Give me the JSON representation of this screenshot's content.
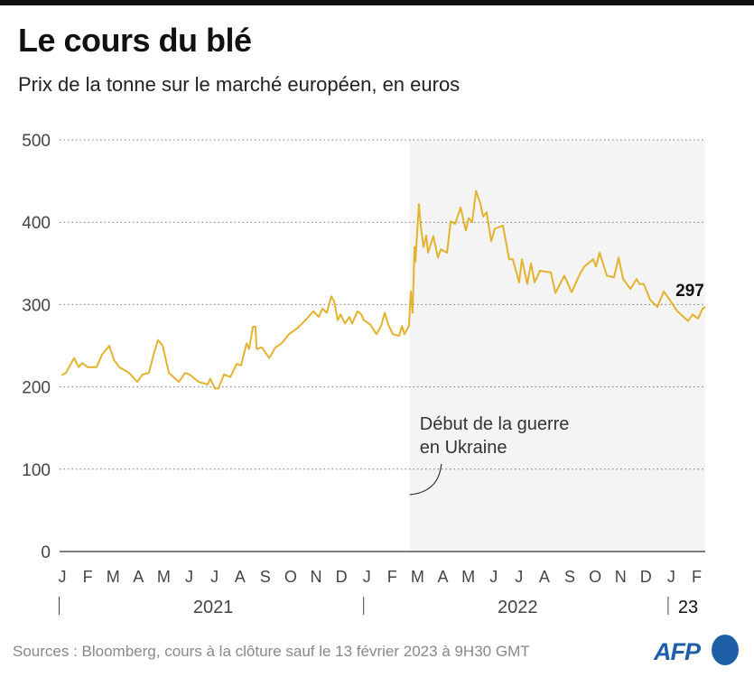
{
  "title": "Le cours du blé",
  "subtitle": "Prix de la tonne sur le marché européen, en euros",
  "source": "Sources : Bloomberg, cours à la clôture sauf le 13 février 2023 à 9H30 GMT",
  "logo": "AFP",
  "colors": {
    "line": "#e3b22e",
    "shade": "#f4f4f4",
    "logo": "#1f5fa8"
  },
  "chart_data": {
    "type": "line",
    "title": "Le cours du blé",
    "ylabel": "Prix de la tonne sur le marché européen, en euros",
    "x_unit": "months since January 2021",
    "xlim": [
      0,
      25.5
    ],
    "ylim": [
      0,
      500
    ],
    "yticks": [
      0,
      100,
      200,
      300,
      400,
      500
    ],
    "grid": "horizontal dotted",
    "month_labels": [
      "J",
      "F",
      "M",
      "A",
      "M",
      "J",
      "J",
      "A",
      "S",
      "O",
      "N",
      "D",
      "J",
      "F",
      "M",
      "A",
      "M",
      "J",
      "J",
      "A",
      "S",
      "O",
      "N",
      "D",
      "J",
      "F"
    ],
    "year_labels": [
      {
        "label": "2021",
        "start": 0
      },
      {
        "label": "2022",
        "start": 12
      },
      {
        "label": "23",
        "start": 24
      }
    ],
    "shaded_from": 13.8,
    "annotation": {
      "line1": "Début de la guerre",
      "line2": "en Ukraine",
      "at": 13.8
    },
    "last_value_label": "297",
    "series": [
      {
        "name": "Blé",
        "points": [
          [
            0.07,
            214
          ],
          [
            0.25,
            217
          ],
          [
            0.57,
            235
          ],
          [
            0.75,
            224
          ],
          [
            0.89,
            229
          ],
          [
            1.1,
            224
          ],
          [
            1.46,
            224
          ],
          [
            1.67,
            239
          ],
          [
            1.96,
            250
          ],
          [
            2.14,
            233
          ],
          [
            2.35,
            224
          ],
          [
            2.74,
            217
          ],
          [
            3.06,
            206
          ],
          [
            3.27,
            215
          ],
          [
            3.52,
            217
          ],
          [
            3.7,
            239
          ],
          [
            3.88,
            257
          ],
          [
            4.06,
            250
          ],
          [
            4.31,
            217
          ],
          [
            4.7,
            206
          ],
          [
            4.95,
            217
          ],
          [
            5.12,
            215
          ],
          [
            5.48,
            206
          ],
          [
            5.84,
            203
          ],
          [
            5.94,
            210
          ],
          [
            6.12,
            198
          ],
          [
            6.26,
            198
          ],
          [
            6.48,
            215
          ],
          [
            6.73,
            212
          ],
          [
            6.98,
            228
          ],
          [
            7.15,
            226
          ],
          [
            7.37,
            253
          ],
          [
            7.47,
            246
          ],
          [
            7.62,
            273
          ],
          [
            7.72,
            273
          ],
          [
            7.76,
            246
          ],
          [
            7.97,
            248
          ],
          [
            8.26,
            235
          ],
          [
            8.51,
            248
          ],
          [
            8.75,
            253
          ],
          [
            9.04,
            264
          ],
          [
            9.4,
            272
          ],
          [
            9.75,
            283
          ],
          [
            10.0,
            292
          ],
          [
            10.21,
            285
          ],
          [
            10.36,
            295
          ],
          [
            10.53,
            290
          ],
          [
            10.71,
            310
          ],
          [
            10.82,
            304
          ],
          [
            10.96,
            281
          ],
          [
            11.07,
            288
          ],
          [
            11.25,
            277
          ],
          [
            11.42,
            285
          ],
          [
            11.53,
            277
          ],
          [
            11.74,
            292
          ],
          [
            11.89,
            288
          ],
          [
            11.99,
            281
          ],
          [
            12.24,
            276
          ],
          [
            12.49,
            264
          ],
          [
            12.67,
            274
          ],
          [
            12.81,
            290
          ],
          [
            12.95,
            276
          ],
          [
            13.13,
            264
          ],
          [
            13.38,
            262
          ],
          [
            13.49,
            274
          ],
          [
            13.59,
            264
          ],
          [
            13.77,
            274
          ],
          [
            13.84,
            316
          ],
          [
            13.91,
            290
          ],
          [
            13.99,
            370
          ],
          [
            14.02,
            352
          ],
          [
            14.16,
            422
          ],
          [
            14.23,
            396
          ],
          [
            14.34,
            370
          ],
          [
            14.45,
            384
          ],
          [
            14.52,
            363
          ],
          [
            14.73,
            383
          ],
          [
            14.91,
            357
          ],
          [
            15.02,
            367
          ],
          [
            15.27,
            363
          ],
          [
            15.41,
            401
          ],
          [
            15.59,
            398
          ],
          [
            15.8,
            418
          ],
          [
            16.01,
            390
          ],
          [
            16.12,
            405
          ],
          [
            16.26,
            400
          ],
          [
            16.41,
            438
          ],
          [
            16.58,
            423
          ],
          [
            16.69,
            407
          ],
          [
            16.83,
            412
          ],
          [
            17.01,
            377
          ],
          [
            17.15,
            392
          ],
          [
            17.47,
            396
          ],
          [
            17.72,
            355
          ],
          [
            17.86,
            355
          ],
          [
            18.11,
            327
          ],
          [
            18.22,
            355
          ],
          [
            18.43,
            325
          ],
          [
            18.58,
            350
          ],
          [
            18.72,
            327
          ],
          [
            18.93,
            341
          ],
          [
            19.36,
            339
          ],
          [
            19.54,
            314
          ],
          [
            19.89,
            335
          ],
          [
            20.18,
            315
          ],
          [
            20.5,
            337
          ],
          [
            20.68,
            346
          ],
          [
            21.03,
            355
          ],
          [
            21.14,
            346
          ],
          [
            21.28,
            363
          ],
          [
            21.57,
            335
          ],
          [
            21.85,
            333
          ],
          [
            22.03,
            357
          ],
          [
            22.21,
            331
          ],
          [
            22.49,
            319
          ],
          [
            22.74,
            331
          ],
          [
            22.85,
            325
          ],
          [
            23.02,
            325
          ],
          [
            23.27,
            306
          ],
          [
            23.56,
            297
          ],
          [
            23.81,
            316
          ],
          [
            24.06,
            305
          ],
          [
            24.34,
            292
          ],
          [
            24.77,
            280
          ],
          [
            24.95,
            288
          ],
          [
            25.16,
            283
          ],
          [
            25.34,
            295
          ],
          [
            25.44,
            297
          ]
        ]
      }
    ]
  }
}
